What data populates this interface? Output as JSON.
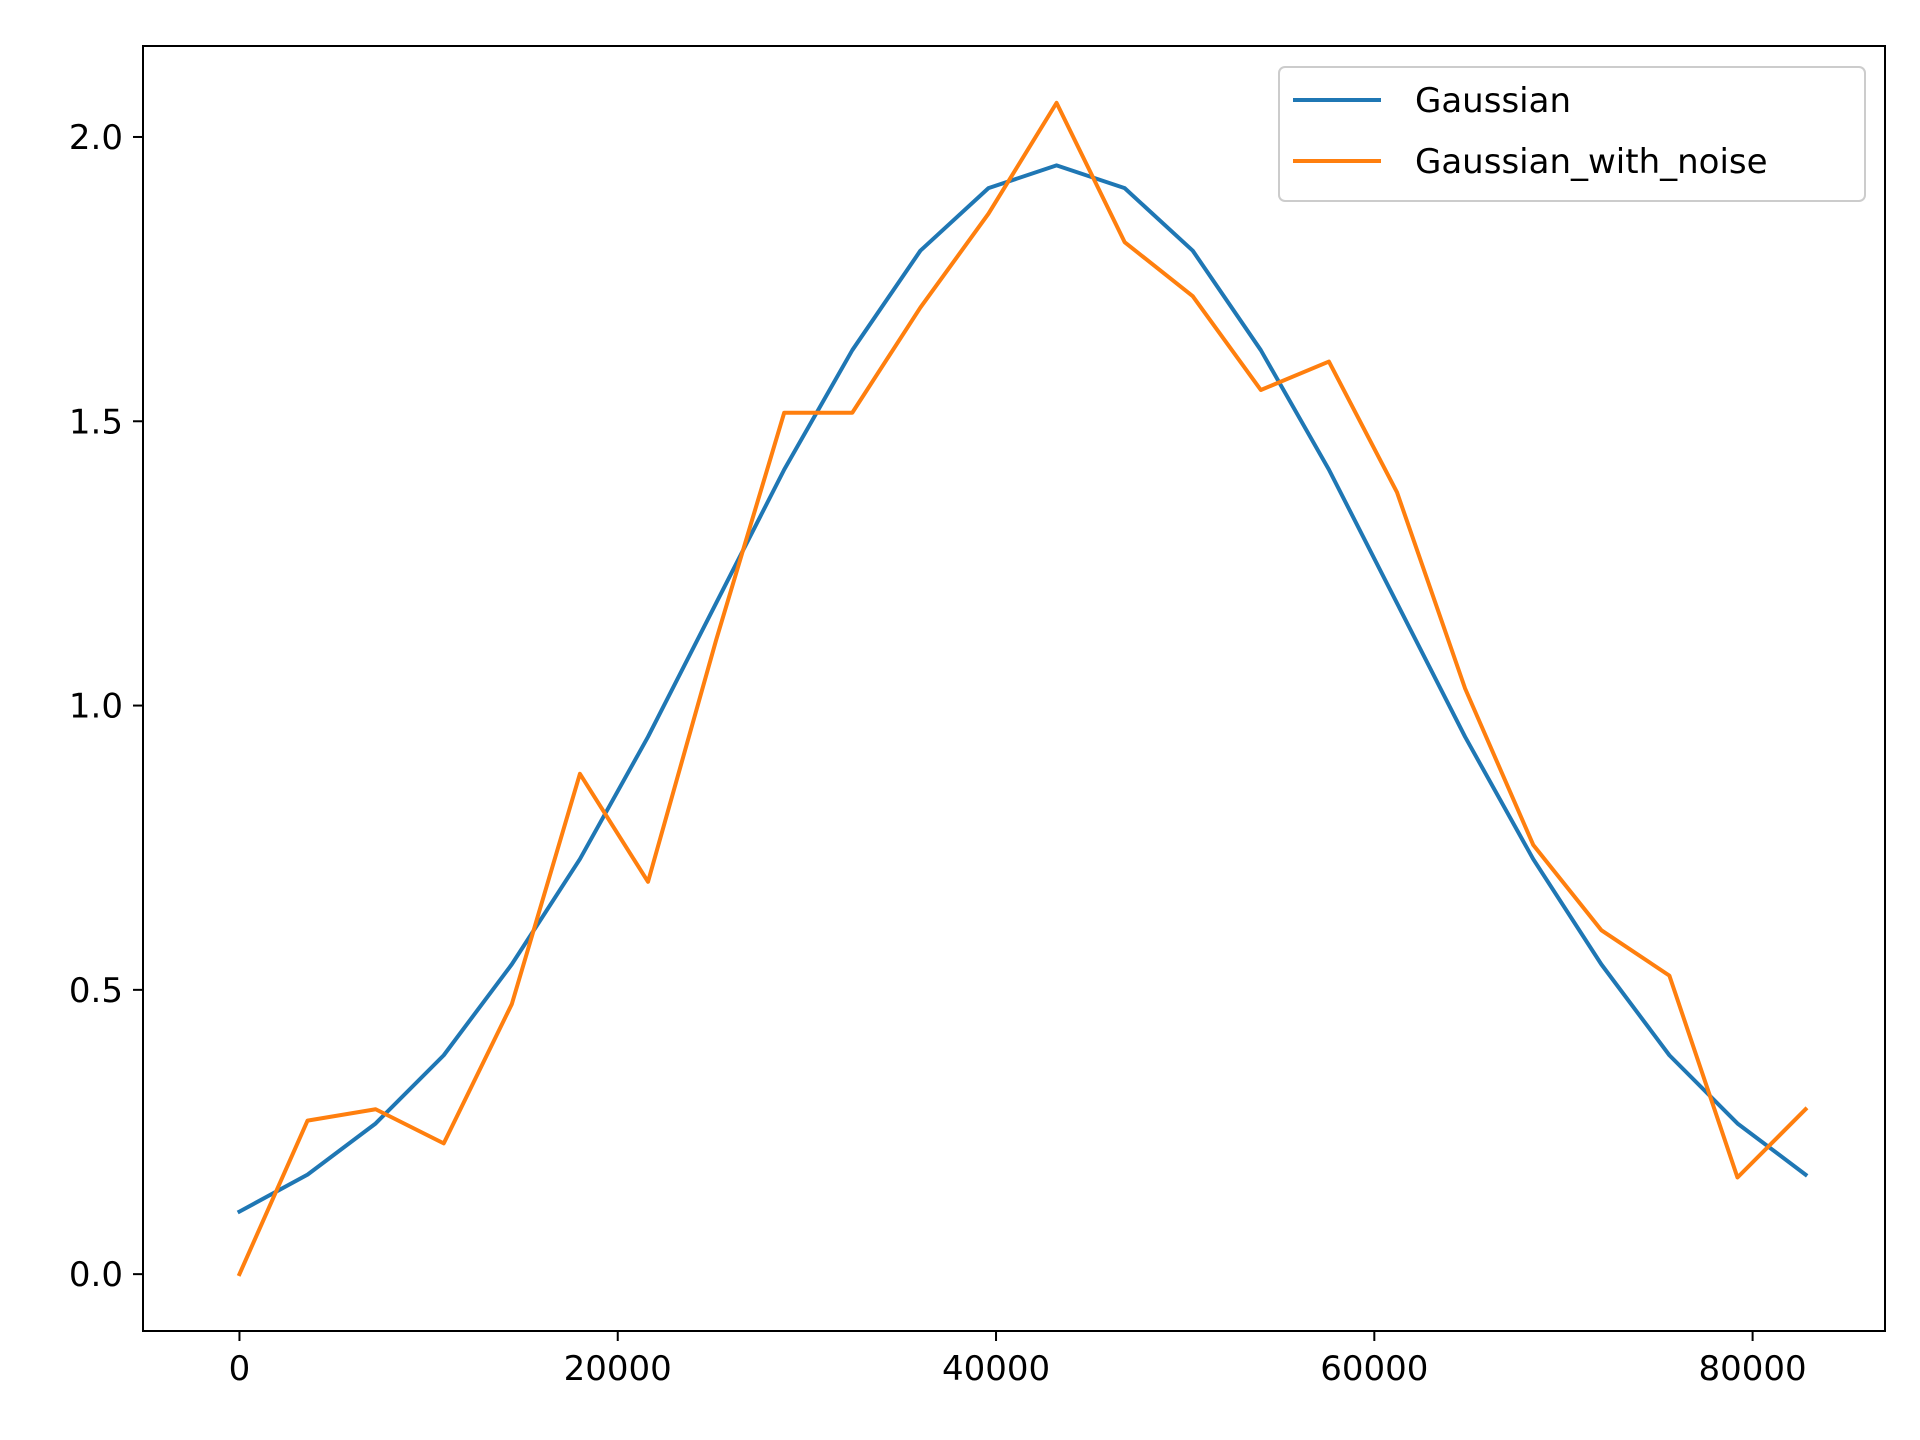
{
  "chart_data": {
    "type": "line",
    "title": "",
    "xlabel": "",
    "ylabel": "",
    "xlim": [
      -5100,
      87000
    ],
    "ylim": [
      -0.1,
      2.16
    ],
    "x_ticks": [
      0,
      20000,
      40000,
      60000,
      80000
    ],
    "x_tick_labels": [
      "0",
      "20000",
      "40000",
      "60000",
      "80000"
    ],
    "y_ticks": [
      0.0,
      0.5,
      1.0,
      1.5,
      2.0
    ],
    "y_tick_labels": [
      "0.0",
      "0.5",
      "1.0",
      "1.5",
      "2.0"
    ],
    "grid": false,
    "legend_position": "top-right",
    "x": [
      0,
      3600,
      7200,
      10800,
      14400,
      18000,
      21600,
      25200,
      28800,
      32400,
      36000,
      39600,
      43200,
      46800,
      50400,
      54000,
      57600,
      61200,
      64800,
      68400,
      72000,
      75600,
      79200,
      82800
    ],
    "series": [
      {
        "name": "Gaussian",
        "color": "#1f77b4",
        "values": [
          0.11,
          0.175,
          0.265,
          0.385,
          0.545,
          0.73,
          0.945,
          1.18,
          1.415,
          1.625,
          1.8,
          1.91,
          1.95,
          1.91,
          1.8,
          1.625,
          1.415,
          1.18,
          0.945,
          0.73,
          0.545,
          0.385,
          0.265,
          0.175
        ]
      },
      {
        "name": "Gaussian_with_noise",
        "color": "#ff7f0e",
        "values": [
          0.0,
          0.27,
          0.29,
          0.23,
          0.475,
          0.88,
          0.69,
          1.115,
          1.515,
          1.515,
          1.7,
          1.865,
          2.06,
          1.815,
          1.72,
          1.555,
          1.605,
          1.375,
          1.03,
          0.755,
          0.605,
          0.525,
          0.17,
          0.29
        ]
      }
    ]
  }
}
